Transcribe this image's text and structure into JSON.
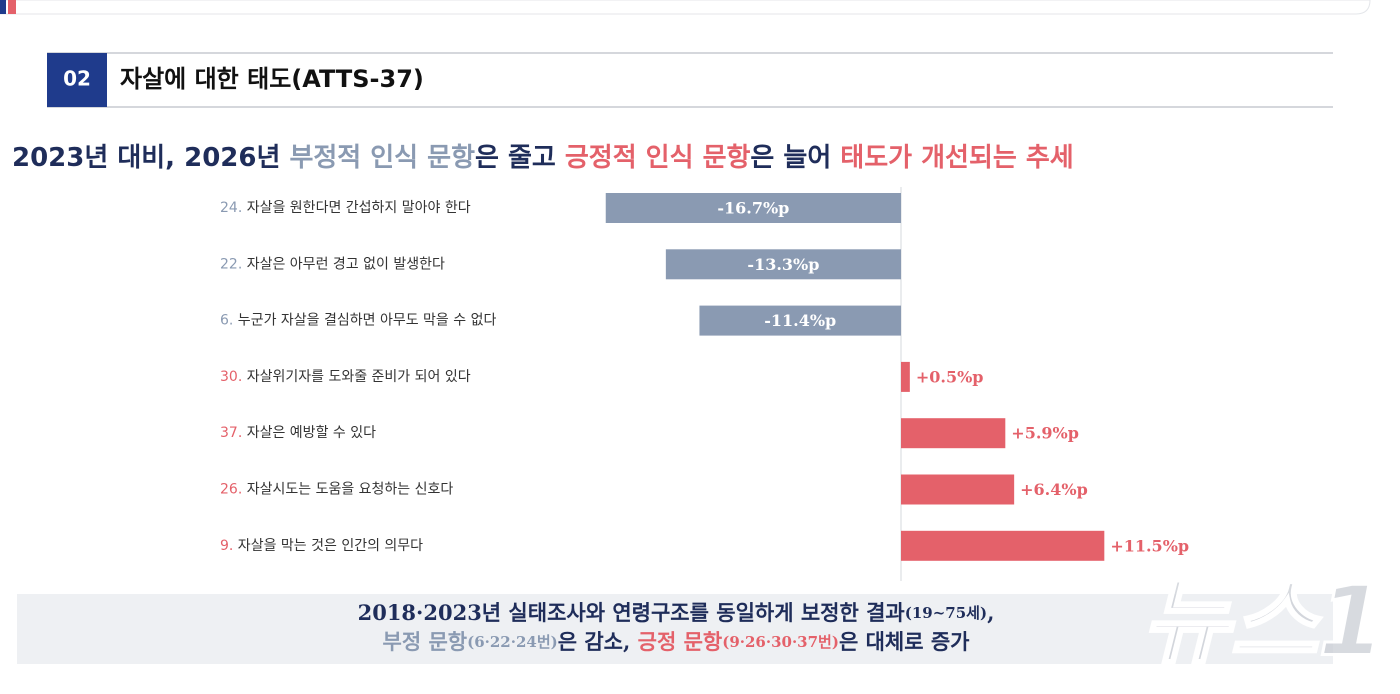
{
  "header": {
    "number": "02",
    "title": "자살에 대한 태도(ATTS-37)"
  },
  "headline": [
    {
      "text": "2023년 대비, 2026년 ",
      "color": "#1f2d5a"
    },
    {
      "text": "부정적 인식 문항",
      "color": "#8a9ab2"
    },
    {
      "text": "은 줄고 ",
      "color": "#1f2d5a"
    },
    {
      "text": "긍정적 인식 문항",
      "color": "#e4616a"
    },
    {
      "text": "은 늘어 ",
      "color": "#1f2d5a"
    },
    {
      "text": "태도가 개선되는 추세",
      "color": "#e4616a"
    }
  ],
  "chart_data": {
    "type": "bar",
    "orientation": "horizontal",
    "categories": [
      "24. 자살을 원한다면 간섭하지 말아야 한다",
      "22. 자살은 아무런 경고 없이 발생한다",
      "6. 누군가 자살을 결심하면 아무도 막을 수 없다",
      "30. 자살위기자를 도와줄 준비가 되어 있다",
      "37. 자살은 예방할 수 있다",
      "26. 자살시도는 도움을 요청하는 신호다",
      "9. 자살을 막는 것은 인간의 의무다"
    ],
    "values": [
      -16.7,
      -13.3,
      -11.4,
      0.5,
      5.9,
      6.4,
      11.5
    ],
    "value_labels": [
      "-16.7%p",
      "-13.3%p",
      "-11.4%p",
      "+0.5%p",
      "+5.9%p",
      "+6.4%p",
      "+11.5%p"
    ],
    "negative_color": "#8a9ab2",
    "positive_color": "#e4616a"
  },
  "note": {
    "lines": [
      [
        {
          "text": "2018·2023년 실태조사와 연령구조를 동일하게 보정한 결과",
          "color": "#1f2d5a"
        },
        {
          "text": "(19~75세)",
          "color": "#1f2d5a",
          "small": true
        },
        {
          "text": ",",
          "color": "#1f2d5a"
        }
      ],
      [
        {
          "text": "부정 문항",
          "color": "#8a9ab2"
        },
        {
          "text": "(6·22·24번)",
          "color": "#8a9ab2",
          "small": true
        },
        {
          "text": "은 감소, ",
          "color": "#1f2d5a"
        },
        {
          "text": "긍정 문항",
          "color": "#e4616a"
        },
        {
          "text": "(9·26·30·37번)",
          "color": "#e4616a",
          "small": true
        },
        {
          "text": "은 대체로 증가",
          "color": "#1f2d5a"
        }
      ]
    ]
  },
  "watermark": "뉴스1"
}
